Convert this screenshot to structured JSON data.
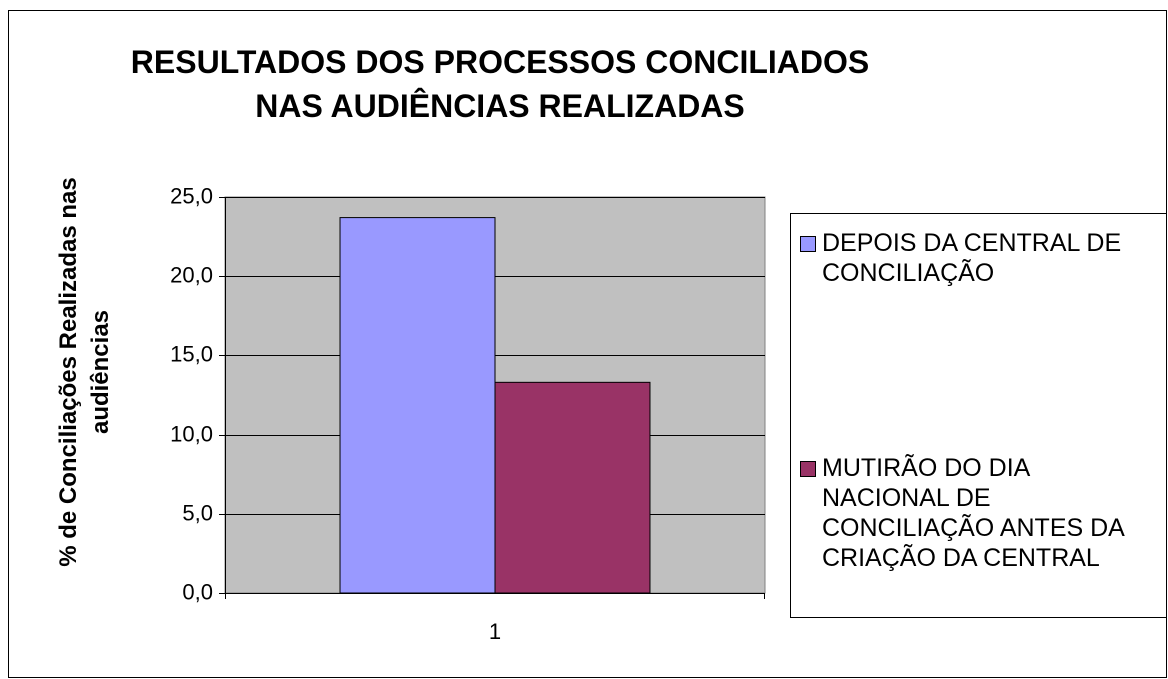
{
  "chart_data": {
    "type": "bar",
    "title": "RESULTADOS DOS PROCESSOS CONCILIADOS NAS AUDIÊNCIAS REALIZADAS",
    "y_label": "% de Conciliações Realizadas nas audiências",
    "categories": [
      "1"
    ],
    "series": [
      {
        "name": "DEPOIS DA CENTRAL DE CONCILIAÇÃO",
        "color": "#9999ff",
        "values": [
          23.7
        ]
      },
      {
        "name": "MUTIRÃO DO DIA NACIONAL DE CONCILIAÇÃO ANTES DA CRIAÇÃO DA CENTRAL",
        "color": "#993366",
        "values": [
          13.3
        ]
      }
    ],
    "ylim": [
      0,
      25
    ],
    "yticks": [
      {
        "value": 0,
        "label": "0,0"
      },
      {
        "value": 5,
        "label": "5,0"
      },
      {
        "value": 10,
        "label": "10,0"
      },
      {
        "value": 15,
        "label": "15,0"
      },
      {
        "value": 20,
        "label": "20,0"
      },
      {
        "value": 25,
        "label": "25,0"
      }
    ],
    "grid": true,
    "legend": "right"
  }
}
